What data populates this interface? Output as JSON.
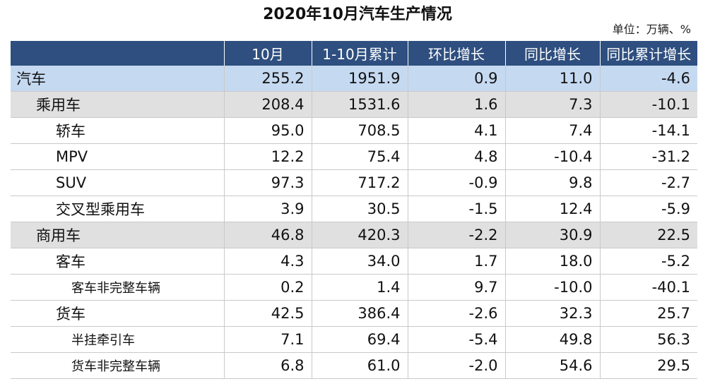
{
  "title": "2020年10月汽车生产情况",
  "unit": "单位：万辆、%",
  "columns": [
    "",
    "10月",
    "1-10月累计",
    "环比增长",
    "同比增长",
    "同比累计增长"
  ],
  "rows": [
    {
      "level": 0,
      "name": "汽车",
      "oct": "255.2",
      "ytd": "1951.9",
      "mom": "0.9",
      "yoy": "11.0",
      "ytd_yoy": "-4.6"
    },
    {
      "level": 1,
      "name": "乘用车",
      "oct": "208.4",
      "ytd": "1531.6",
      "mom": "1.6",
      "yoy": "7.3",
      "ytd_yoy": "-10.1"
    },
    {
      "level": 2,
      "name": "轿车",
      "oct": "95.0",
      "ytd": "708.5",
      "mom": "4.1",
      "yoy": "7.4",
      "ytd_yoy": "-14.1"
    },
    {
      "level": 2,
      "name": "MPV",
      "oct": "12.2",
      "ytd": "75.4",
      "mom": "4.8",
      "yoy": "-10.4",
      "ytd_yoy": "-31.2"
    },
    {
      "level": 2,
      "name": "SUV",
      "oct": "97.3",
      "ytd": "717.2",
      "mom": "-0.9",
      "yoy": "9.8",
      "ytd_yoy": "-2.7"
    },
    {
      "level": 2,
      "name": "交叉型乘用车",
      "oct": "3.9",
      "ytd": "30.5",
      "mom": "-1.5",
      "yoy": "12.4",
      "ytd_yoy": "-5.9"
    },
    {
      "level": 1,
      "name": "商用车",
      "oct": "46.8",
      "ytd": "420.3",
      "mom": "-2.2",
      "yoy": "30.9",
      "ytd_yoy": "22.5"
    },
    {
      "level": 2,
      "name": "客车",
      "oct": "4.3",
      "ytd": "34.0",
      "mom": "1.7",
      "yoy": "18.0",
      "ytd_yoy": "-5.2"
    },
    {
      "level": 3,
      "name": "客车非完整车辆",
      "oct": "0.2",
      "ytd": "1.4",
      "mom": "9.7",
      "yoy": "-10.0",
      "ytd_yoy": "-40.1"
    },
    {
      "level": 2,
      "name": "货车",
      "oct": "42.5",
      "ytd": "386.4",
      "mom": "-2.6",
      "yoy": "32.3",
      "ytd_yoy": "25.7"
    },
    {
      "level": 3,
      "name": "半挂牵引车",
      "oct": "7.1",
      "ytd": "69.4",
      "mom": "-5.4",
      "yoy": "49.8",
      "ytd_yoy": "56.3"
    },
    {
      "level": 3,
      "name": "货车非完整车辆",
      "oct": "6.8",
      "ytd": "61.0",
      "mom": "-2.0",
      "yoy": "54.6",
      "ytd_yoy": "29.5"
    }
  ],
  "colors": {
    "header_bg": "#2e4f7f",
    "level0_bg": "#c5d9f1",
    "level1_bg": "#e0e0e0"
  }
}
